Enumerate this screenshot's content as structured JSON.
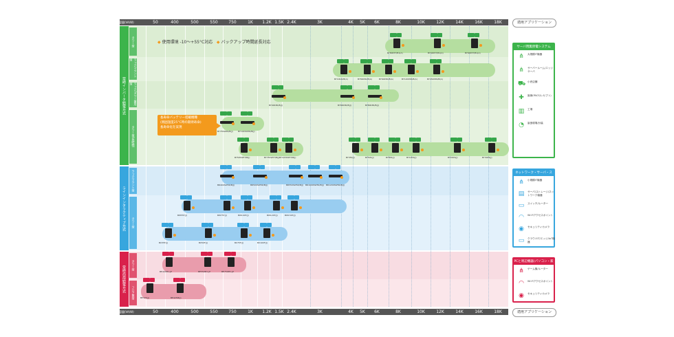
{
  "header": {
    "caption": "容量(VA/W)",
    "ticks": [
      "50",
      "400",
      "500",
      "550",
      "750",
      "1K",
      "1.2K",
      "1.5K",
      "2.4K",
      "3K",
      "4K",
      "5K",
      "6K",
      "8K",
      "10K",
      "12K",
      "14K",
      "16K",
      "18K"
    ]
  },
  "app_title": "適用アプリケーション",
  "legend": {
    "temp": "使用環境 -10〜+55°C対応",
    "backup": "バックアップ時間延長対応"
  },
  "note": [
    "長寿命バッテリー搭載機種",
    "(周囲温度25°C時の期待寿命)",
    "長寿命化を実現"
  ],
  "sections": {
    "online": "常時インバータ給電方式",
    "line_interactive": "ラインインタラクティブ方式",
    "standby": "常時商用給電方式"
  },
  "subsections": {
    "s1": "タワー型",
    "s2": "ラックマウント型",
    "s3": "ラック/タワー兼用型",
    "s4": "タワー型(長時間)",
    "s5": "ラックマウント型",
    "s6": "タワー型",
    "s7": "タワー型",
    "s8": "フロア置型"
  },
  "products": {
    "r1": [
      "BY80K5T/B1(A)",
      "BY40K5T/B1(A)",
      "BY60K5T/B1(A)"
    ],
    "r2": [
      "BY10K-R/B(A)",
      "BY80K5R/B(A)",
      "BY60K5R/B(A)",
      "BY120K5R/B(A)",
      "BY150K5R/B(A)"
    ],
    "r3": [
      "BY40K3R/B(J)",
      "BY60K3R/B(J)",
      "BY80K3R/B(J)"
    ],
    "r4": [
      "BY75SW5R/B(J)",
      "BY100SW5R/B(J)"
    ],
    "r5": [
      "BY50SW5T/B(J)",
      "BY75SW5T/B(J)",
      "BY120SW5T/B(J)",
      "BY35S(J)",
      "BY50S(J)",
      "BY80S(J)",
      "BY120S(J)",
      "BY200S(J)",
      "BY300S(J)"
    ],
    "r6": [
      "BR400SW5R/B(J)",
      "BR500SW5R/B(J)",
      "BR550SW5R/B(J)",
      "BR1000SW5R/B(J)",
      "BR1200SW5R/B(J)"
    ],
    "r7": [
      "BW55T(J)",
      "BW75T(J)",
      "BW100T(J)",
      "BW120T(J)",
      "BW150T(J)"
    ],
    "r8": [
      "BX35F(J)",
      "BX50F(J)",
      "BX75F(J)",
      "BX100F(J)"
    ],
    "r9": [
      "BE400M1-JP",
      "BE550M1-JP",
      "BE750M1-JP"
    ],
    "r10": [
      "BE325(J)",
      "BE425M(J)"
    ]
  },
  "panels": {
    "green": {
      "title": "サーバ用無停電システム",
      "rows": [
        "大規模IT機器",
        "サーバールーム/エッジサーバ",
        "小売店舗",
        "医療(PACS/レセプト)",
        "工場",
        "製造現場/計装"
      ]
    },
    "blue": {
      "title": "ネットワーク・サーバ・ストレージ用途",
      "rows": [
        "小規模IT機器",
        "サーバ/ストレージ/ネットワーク機器",
        "スイッチ/ルーター",
        "Wi-Fiアクセスポイント",
        "セキュリティカメラ",
        "クラウドIT/エッジ/IoT機器"
      ]
    },
    "red": {
      "title": "PCと周辺機器(パソコン・家庭用機器向け)",
      "rows": [
        "ゲーム機/ルーター",
        "Wi-Fiアクセスポイント",
        "セキュリティカメラ"
      ]
    }
  },
  "colors": {
    "green": "#3cb44b",
    "green_bg": "#e6f2df",
    "green_pill": "#b5dea0",
    "blue": "#37a6de",
    "blue_bg": "#e3f1fb",
    "blue_pill": "#99cdf0",
    "red": "#d9214b",
    "red_bg": "#fbe6ea",
    "red_pill": "#e99cac",
    "orange": "#f39a1d"
  },
  "footer": {
    "caption": "容量(VA/W)"
  }
}
